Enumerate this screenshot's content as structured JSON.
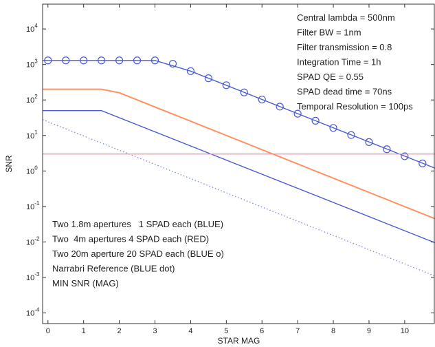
{
  "chart_data": {
    "type": "line",
    "title": "",
    "xlabel": "STAR MAG",
    "ylabel": "SNR",
    "xlim": [
      -0.15,
      10.85
    ],
    "ylim_log10": [
      -4.3,
      4.7
    ],
    "y_scale": "log",
    "grid": false,
    "x_ticks": [
      0,
      1,
      2,
      3,
      4,
      5,
      6,
      7,
      8,
      9,
      10
    ],
    "y_ticks": [
      {
        "exp": 4,
        "base": "10",
        "label": "4"
      },
      {
        "exp": 3,
        "base": "10",
        "label": "3"
      },
      {
        "exp": 2,
        "base": "10",
        "label": "2"
      },
      {
        "exp": 1,
        "base": "10",
        "label": "1"
      },
      {
        "exp": 0,
        "base": "10",
        "label": "0"
      },
      {
        "exp": -1,
        "base": "10",
        "label": "-1"
      },
      {
        "exp": -2,
        "base": "10",
        "label": "-2"
      },
      {
        "exp": -3,
        "base": "10",
        "label": "-3"
      },
      {
        "exp": -4,
        "base": "10",
        "label": "-4"
      }
    ],
    "series": [
      {
        "style": "solid",
        "color": "#ff9060",
        "x": [
          -0.15,
          1.5,
          2,
          10.85
        ],
        "y": [
          200,
          200,
          160,
          0.045
        ]
      },
      {
        "style": "solid",
        "color": "#4a5bd4",
        "x": [
          -0.15,
          1.5,
          10.85
        ],
        "y": [
          50,
          50,
          0.0095
        ]
      },
      {
        "style": "solid-circles",
        "color": "#4a5bd4",
        "x": [
          -0.15,
          3,
          4,
          10.85
        ],
        "y": [
          1300,
          1300,
          650,
          1.2
        ],
        "markers_x": [
          0,
          0.5,
          1,
          1.5,
          2,
          2.5,
          3,
          3.5,
          4,
          4.5,
          5,
          5.5,
          6,
          6.5,
          7,
          7.5,
          8,
          8.5,
          9,
          9.5,
          10,
          10.5
        ],
        "markers_y": [
          1300,
          1300,
          1300,
          1300,
          1300,
          1300,
          1300,
          1050,
          650,
          410,
          260,
          163,
          103,
          65,
          41,
          26,
          16.3,
          10.3,
          6.5,
          4.1,
          2.6,
          1.63
        ]
      },
      {
        "style": "dotted",
        "color": "#7a85e0",
        "x": [
          -0.15,
          10.85
        ],
        "y": [
          28,
          0.0011
        ]
      },
      {
        "style": "solid",
        "color": "#ff8aa8",
        "x": [
          -0.15,
          10.85
        ],
        "y": [
          3,
          3
        ]
      }
    ],
    "annotations_top_right": [
      "Central lambda = 500nm",
      "Filter BW = 1nm",
      "Filter transmission = 0.8",
      "Integration Time = 1h",
      "SPAD QE = 0.55",
      "SPAD dead time = 70ns",
      "Temporal Resolution = 100ps"
    ],
    "annotations_bottom_left": [
      "Two 1.8m apertures   1 SPAD each (BLUE)",
      "Two  4m apertures 4 SPAD each (RED)",
      "Two 20m aperture 20 SPAD each (BLUE o)",
      "Narrabri Reference (BLUE dot)",
      "MIN SNR (MAG)"
    ]
  }
}
